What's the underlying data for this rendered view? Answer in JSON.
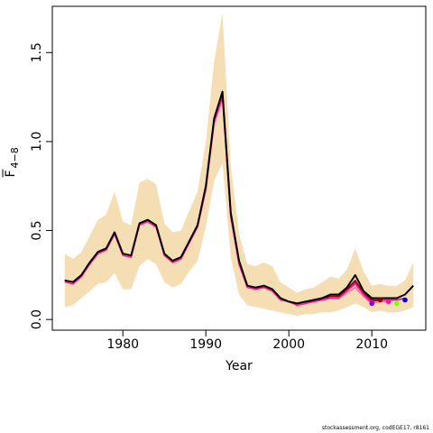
{
  "chart_data": {
    "type": "line",
    "title": "",
    "xlabel": "Year",
    "ylabel_main": "F",
    "ylabel_sub": "4−8",
    "xlim": [
      1971.5,
      2016.5
    ],
    "ylim": [
      -0.06,
      1.76
    ],
    "xticks": [
      1980,
      1990,
      2000,
      2010
    ],
    "yticks": [
      0.0,
      0.5,
      1.0,
      1.5
    ],
    "ytick_labels": [
      "0.0",
      "0.5",
      "1.0",
      "1.5"
    ],
    "colors": {
      "band": "#f5deb3",
      "main_line": "#000000",
      "retro_lines": [
        "#ff69b4",
        "#c71585",
        "#8b0000",
        "#ff1493"
      ],
      "retro_points": [
        "#ff1493",
        "#9400d3",
        "#8b0000",
        "#7cfc00",
        "#0000cd"
      ]
    },
    "band": {
      "x": [
        1973,
        1974,
        1975,
        1976,
        1977,
        1978,
        1979,
        1980,
        1981,
        1982,
        1983,
        1984,
        1985,
        1986,
        1987,
        1988,
        1989,
        1990,
        1991,
        1992,
        1993,
        1994,
        1995,
        1996,
        1997,
        1998,
        1999,
        2000,
        2001,
        2002,
        2003,
        2004,
        2005,
        2006,
        2007,
        2008,
        2009,
        2010,
        2011,
        2012,
        2013,
        2014,
        2015
      ],
      "upper": [
        0.37,
        0.34,
        0.38,
        0.47,
        0.56,
        0.59,
        0.72,
        0.55,
        0.53,
        0.77,
        0.79,
        0.76,
        0.54,
        0.49,
        0.5,
        0.61,
        0.72,
        1.0,
        1.45,
        1.72,
        0.87,
        0.48,
        0.31,
        0.3,
        0.32,
        0.3,
        0.21,
        0.18,
        0.15,
        0.17,
        0.18,
        0.21,
        0.24,
        0.23,
        0.28,
        0.4,
        0.27,
        0.19,
        0.2,
        0.19,
        0.19,
        0.22,
        0.32
      ],
      "lower": [
        0.07,
        0.08,
        0.12,
        0.16,
        0.2,
        0.21,
        0.26,
        0.17,
        0.17,
        0.3,
        0.34,
        0.31,
        0.21,
        0.18,
        0.2,
        0.27,
        0.33,
        0.52,
        0.78,
        0.88,
        0.35,
        0.14,
        0.08,
        0.07,
        0.06,
        0.05,
        0.04,
        0.03,
        0.02,
        0.03,
        0.03,
        0.04,
        0.04,
        0.05,
        0.07,
        0.09,
        0.07,
        0.04,
        0.05,
        0.04,
        0.04,
        0.05,
        0.07
      ]
    },
    "series": [
      {
        "name": "",
        "role": "main",
        "color": "#000000",
        "x": [
          1973,
          1974,
          1975,
          1976,
          1977,
          1978,
          1979,
          1980,
          1981,
          1982,
          1983,
          1984,
          1985,
          1986,
          1987,
          1988,
          1989,
          1990,
          1991,
          1992,
          1993,
          1994,
          1995,
          1996,
          1997,
          1998,
          1999,
          2000,
          2001,
          2002,
          2003,
          2004,
          2005,
          2006,
          2007,
          2008,
          2009,
          2010,
          2011,
          2012,
          2013,
          2014,
          2015
        ],
        "y": [
          0.22,
          0.21,
          0.25,
          0.32,
          0.38,
          0.4,
          0.49,
          0.37,
          0.36,
          0.54,
          0.56,
          0.53,
          0.37,
          0.33,
          0.35,
          0.44,
          0.53,
          0.75,
          1.13,
          1.28,
          0.6,
          0.33,
          0.19,
          0.18,
          0.19,
          0.17,
          0.12,
          0.1,
          0.09,
          0.1,
          0.11,
          0.12,
          0.14,
          0.14,
          0.18,
          0.25,
          0.16,
          0.12,
          0.12,
          0.12,
          0.12,
          0.14,
          0.19
        ]
      },
      {
        "name": "",
        "role": "retro",
        "color": "#ff69b4",
        "x": [
          1973,
          1974,
          1975,
          1976,
          1977,
          1978,
          1979,
          1980,
          1981,
          1982,
          1983,
          1984,
          1985,
          1986,
          1987,
          1988,
          1989,
          1990,
          1991,
          1992,
          1993,
          1994,
          1995,
          1996,
          1997,
          1998,
          1999,
          2000,
          2001,
          2002,
          2003,
          2004,
          2005,
          2006,
          2007,
          2008,
          2009,
          2010,
          2011,
          2012
        ],
        "y": [
          0.21,
          0.2,
          0.24,
          0.31,
          0.37,
          0.39,
          0.48,
          0.36,
          0.35,
          0.53,
          0.55,
          0.52,
          0.36,
          0.32,
          0.34,
          0.43,
          0.52,
          0.73,
          1.1,
          1.24,
          0.57,
          0.31,
          0.18,
          0.17,
          0.18,
          0.16,
          0.11,
          0.1,
          0.08,
          0.09,
          0.1,
          0.11,
          0.12,
          0.12,
          0.15,
          0.18,
          0.13,
          0.09,
          0.1,
          0.1
        ]
      },
      {
        "name": "",
        "role": "retro",
        "color": "#c71585",
        "x": [
          1973,
          1974,
          1975,
          1976,
          1977,
          1978,
          1979,
          1980,
          1981,
          1982,
          1983,
          1984,
          1985,
          1986,
          1987,
          1988,
          1989,
          1990,
          1991,
          1992,
          1993,
          1994,
          1995,
          1996,
          1997,
          1998,
          1999,
          2000,
          2001,
          2002,
          2003,
          2004,
          2005,
          2006,
          2007,
          2008,
          2009,
          2010,
          2011,
          2012,
          2013,
          2014
        ],
        "y": [
          0.22,
          0.21,
          0.25,
          0.32,
          0.38,
          0.4,
          0.49,
          0.37,
          0.36,
          0.54,
          0.56,
          0.53,
          0.37,
          0.33,
          0.35,
          0.44,
          0.53,
          0.74,
          1.12,
          1.26,
          0.59,
          0.32,
          0.19,
          0.17,
          0.18,
          0.17,
          0.12,
          0.1,
          0.09,
          0.1,
          0.1,
          0.11,
          0.13,
          0.13,
          0.16,
          0.21,
          0.14,
          0.1,
          0.11,
          0.11,
          0.11,
          0.12
        ]
      },
      {
        "name": "",
        "role": "retro",
        "color": "#8b0000",
        "x": [
          1973,
          1974,
          1975,
          1976,
          1977,
          1978,
          1979,
          1980,
          1981,
          1982,
          1983,
          1984,
          1985,
          1986,
          1987,
          1988,
          1989,
          1990,
          1991,
          1992,
          1993,
          1994,
          1995,
          1996,
          1997,
          1998,
          1999,
          2000,
          2001,
          2002,
          2003,
          2004,
          2005,
          2006,
          2007,
          2008,
          2009,
          2010,
          2011
        ],
        "y": [
          0.22,
          0.21,
          0.25,
          0.32,
          0.38,
          0.4,
          0.49,
          0.37,
          0.36,
          0.54,
          0.56,
          0.53,
          0.37,
          0.33,
          0.35,
          0.44,
          0.53,
          0.74,
          1.12,
          1.27,
          0.59,
          0.32,
          0.19,
          0.18,
          0.18,
          0.17,
          0.12,
          0.1,
          0.09,
          0.1,
          0.1,
          0.12,
          0.13,
          0.13,
          0.17,
          0.22,
          0.15,
          0.11,
          0.11
        ]
      },
      {
        "name": "",
        "role": "retro",
        "color": "#ff1493",
        "x": [
          1973,
          1974,
          1975,
          1976,
          1977,
          1978,
          1979,
          1980,
          1981,
          1982,
          1983,
          1984,
          1985,
          1986,
          1987,
          1988,
          1989,
          1990,
          1991,
          1992,
          1993,
          1994,
          1995,
          1996,
          1997,
          1998,
          1999,
          2000,
          2001,
          2002,
          2003,
          2004,
          2005,
          2006,
          2007,
          2008,
          2009,
          2010
        ],
        "y": [
          0.21,
          0.2,
          0.24,
          0.31,
          0.37,
          0.39,
          0.48,
          0.36,
          0.35,
          0.53,
          0.55,
          0.52,
          0.36,
          0.32,
          0.34,
          0.43,
          0.52,
          0.73,
          1.11,
          1.25,
          0.58,
          0.31,
          0.18,
          0.17,
          0.18,
          0.16,
          0.11,
          0.1,
          0.08,
          0.09,
          0.1,
          0.11,
          0.12,
          0.12,
          0.16,
          0.2,
          0.14,
          0.09
        ]
      }
    ],
    "points": [
      {
        "x": 2010,
        "y": 0.09,
        "color": "#9400d3"
      },
      {
        "x": 2011,
        "y": 0.11,
        "color": "#8b0000"
      },
      {
        "x": 2012,
        "y": 0.1,
        "color": "#ff1493"
      },
      {
        "x": 2013,
        "y": 0.09,
        "color": "#7cfc00"
      },
      {
        "x": 2014,
        "y": 0.11,
        "color": "#0000cd"
      }
    ]
  },
  "credit": "stockassessment.org, codEGE17, r8161"
}
